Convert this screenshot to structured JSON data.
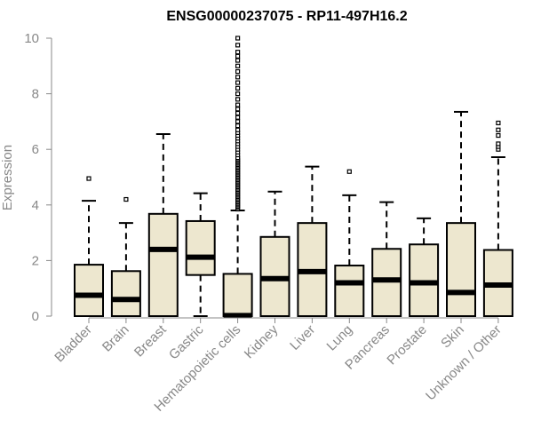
{
  "chart_data": {
    "type": "boxplot",
    "title": "ENSG00000237075 - RP11-497H16.2",
    "xlabel": "",
    "ylabel": "Expression",
    "ylim": [
      0,
      10
    ],
    "yticks": [
      0,
      2,
      4,
      6,
      8,
      10
    ],
    "grid": false,
    "legend": "none",
    "box_fill": "#EDE7CF",
    "box_stroke": "#000000",
    "categories": [
      "Bladder",
      "Brain",
      "Breast",
      "Gastric",
      "Hematopoietic cells",
      "Kidney",
      "Liver",
      "Lung",
      "Pancreas",
      "Prostate",
      "Skin",
      "Unknown / Other"
    ],
    "boxes": [
      {
        "name": "Bladder",
        "whisker_low": 0,
        "q1": 0,
        "median": 0.75,
        "q3": 1.85,
        "whisker_high": 4.15,
        "outliers": [
          4.95
        ]
      },
      {
        "name": "Brain",
        "whisker_low": 0,
        "q1": 0,
        "median": 0.6,
        "q3": 1.62,
        "whisker_high": 3.35,
        "outliers": [
          4.2
        ]
      },
      {
        "name": "Breast",
        "whisker_low": 0,
        "q1": 0,
        "median": 2.4,
        "q3": 3.68,
        "whisker_high": 6.55,
        "outliers": []
      },
      {
        "name": "Gastric",
        "whisker_low": 0,
        "q1": 1.48,
        "median": 2.12,
        "q3": 3.42,
        "whisker_high": 4.42,
        "outliers": []
      },
      {
        "name": "Hematopoietic cells",
        "whisker_low": 0,
        "q1": 0,
        "median": 0.02,
        "q3": 1.52,
        "whisker_high": 3.8,
        "outliers": [
          3.85,
          3.9,
          3.95,
          4.0,
          4.05,
          4.1,
          4.15,
          4.2,
          4.25,
          4.3,
          4.35,
          4.4,
          4.45,
          4.5,
          4.55,
          4.6,
          4.65,
          4.7,
          4.75,
          4.8,
          4.85,
          4.9,
          4.95,
          5.0,
          5.05,
          5.1,
          5.15,
          5.2,
          5.25,
          5.3,
          5.35,
          5.4,
          5.45,
          5.5,
          5.55,
          5.6,
          5.65,
          5.7,
          5.8,
          5.9,
          6.0,
          6.1,
          6.2,
          6.3,
          6.4,
          6.5,
          6.6,
          6.7,
          6.85,
          7.0,
          7.15,
          7.3,
          7.45,
          7.6,
          7.8,
          8.0,
          8.2,
          8.4,
          8.6,
          8.8,
          9.0,
          9.2,
          9.35,
          9.5,
          9.75,
          10.0
        ]
      },
      {
        "name": "Kidney",
        "whisker_low": 0,
        "q1": 0,
        "median": 1.35,
        "q3": 2.85,
        "whisker_high": 4.48,
        "outliers": []
      },
      {
        "name": "Liver",
        "whisker_low": 0,
        "q1": 0,
        "median": 1.6,
        "q3": 3.35,
        "whisker_high": 5.38,
        "outliers": []
      },
      {
        "name": "Lung",
        "whisker_low": 0,
        "q1": 0,
        "median": 1.2,
        "q3": 1.82,
        "whisker_high": 4.35,
        "outliers": [
          5.2
        ]
      },
      {
        "name": "Pancreas",
        "whisker_low": 0,
        "q1": 0,
        "median": 1.3,
        "q3": 2.42,
        "whisker_high": 4.1,
        "outliers": []
      },
      {
        "name": "Prostate",
        "whisker_low": 0,
        "q1": 0,
        "median": 1.2,
        "q3": 2.58,
        "whisker_high": 3.52,
        "outliers": []
      },
      {
        "name": "Skin",
        "whisker_low": 0,
        "q1": 0,
        "median": 0.85,
        "q3": 3.35,
        "whisker_high": 7.35,
        "outliers": []
      },
      {
        "name": "Unknown / Other",
        "whisker_low": 0,
        "q1": 0,
        "median": 1.12,
        "q3": 2.38,
        "whisker_high": 5.72,
        "outliers": [
          6.0,
          6.1,
          6.2,
          6.5,
          6.7,
          6.95
        ]
      }
    ]
  }
}
